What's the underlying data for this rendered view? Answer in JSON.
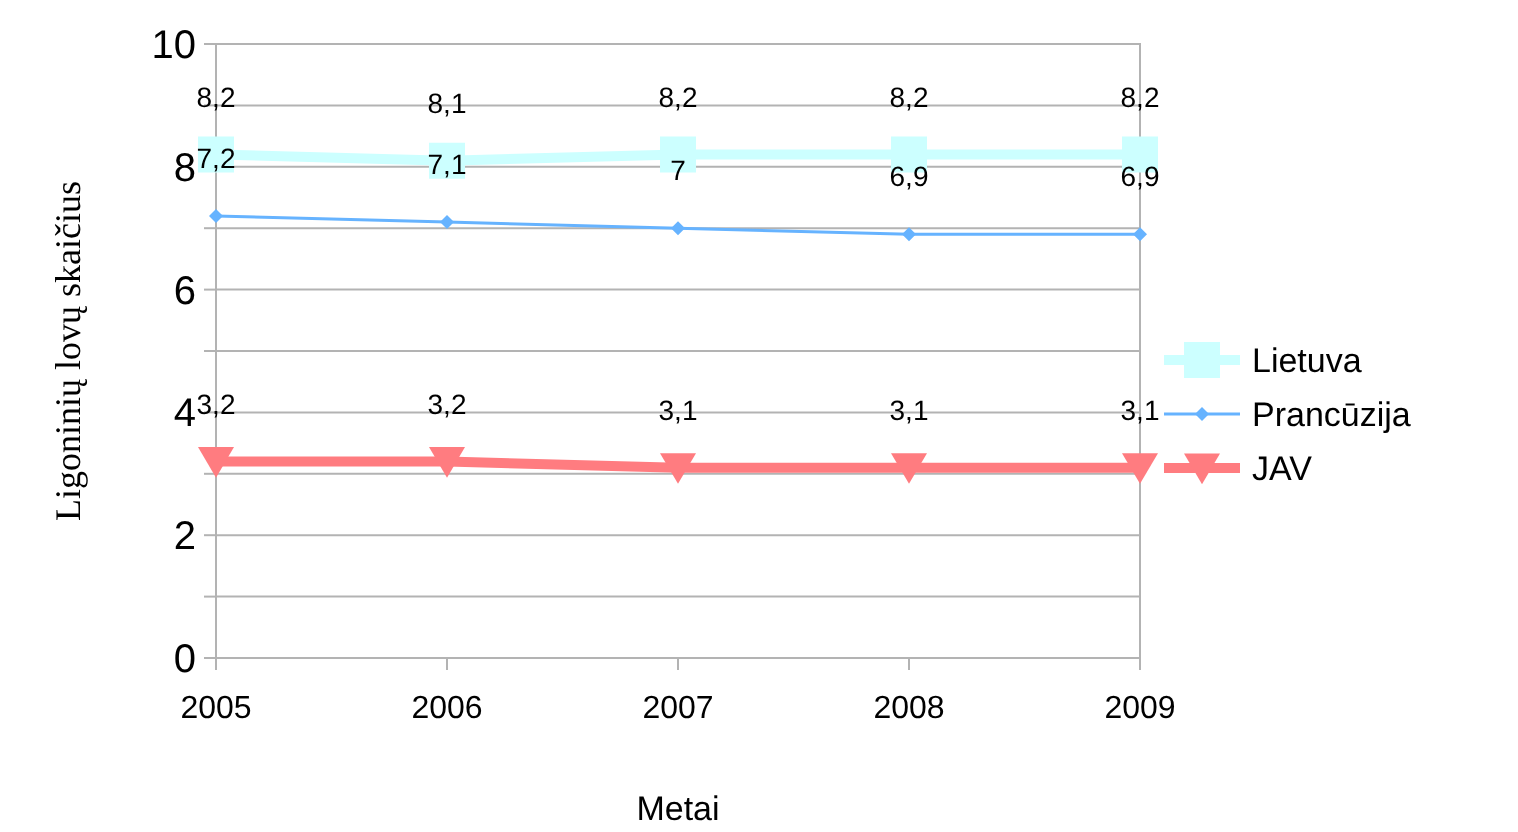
{
  "chart_data": {
    "type": "line",
    "xlabel": "Metai",
    "ylabel": "Ligoninių lovų skaičius",
    "categories": [
      "2005",
      "2006",
      "2007",
      "2008",
      "2009"
    ],
    "series": [
      {
        "name": "Lietuva",
        "color": "#ccffff",
        "marker": "square",
        "values": [
          8.2,
          8.1,
          8.2,
          8.2,
          8.2
        ],
        "value_labels": [
          "8,2",
          "8,1",
          "8,2",
          "8,2",
          "8,2"
        ]
      },
      {
        "name": "Prancūzija",
        "color": "#66b3ff",
        "marker": "diamond",
        "values": [
          7.2,
          7.1,
          7,
          6.9,
          6.9
        ],
        "value_labels": [
          "7,2",
          "7,1",
          "7",
          "6,9",
          "6,9"
        ]
      },
      {
        "name": "JAV",
        "color": "#ff7c80",
        "marker": "triangle",
        "values": [
          3.2,
          3.2,
          3.1,
          3.1,
          3.1
        ],
        "value_labels": [
          "3,2",
          "3,2",
          "3,1",
          "3,1",
          "3,1"
        ]
      }
    ],
    "ylim": [
      0,
      10
    ],
    "yticks": [
      0,
      {
        "value": 1,
        "label": null
      },
      2,
      {
        "value": 3,
        "label": null
      },
      4,
      {
        "value": 5,
        "label": null
      },
      6,
      {
        "value": 7,
        "label": null
      },
      8,
      {
        "value": 9,
        "label": null
      },
      10
    ],
    "grid": "y",
    "legend": "right"
  }
}
